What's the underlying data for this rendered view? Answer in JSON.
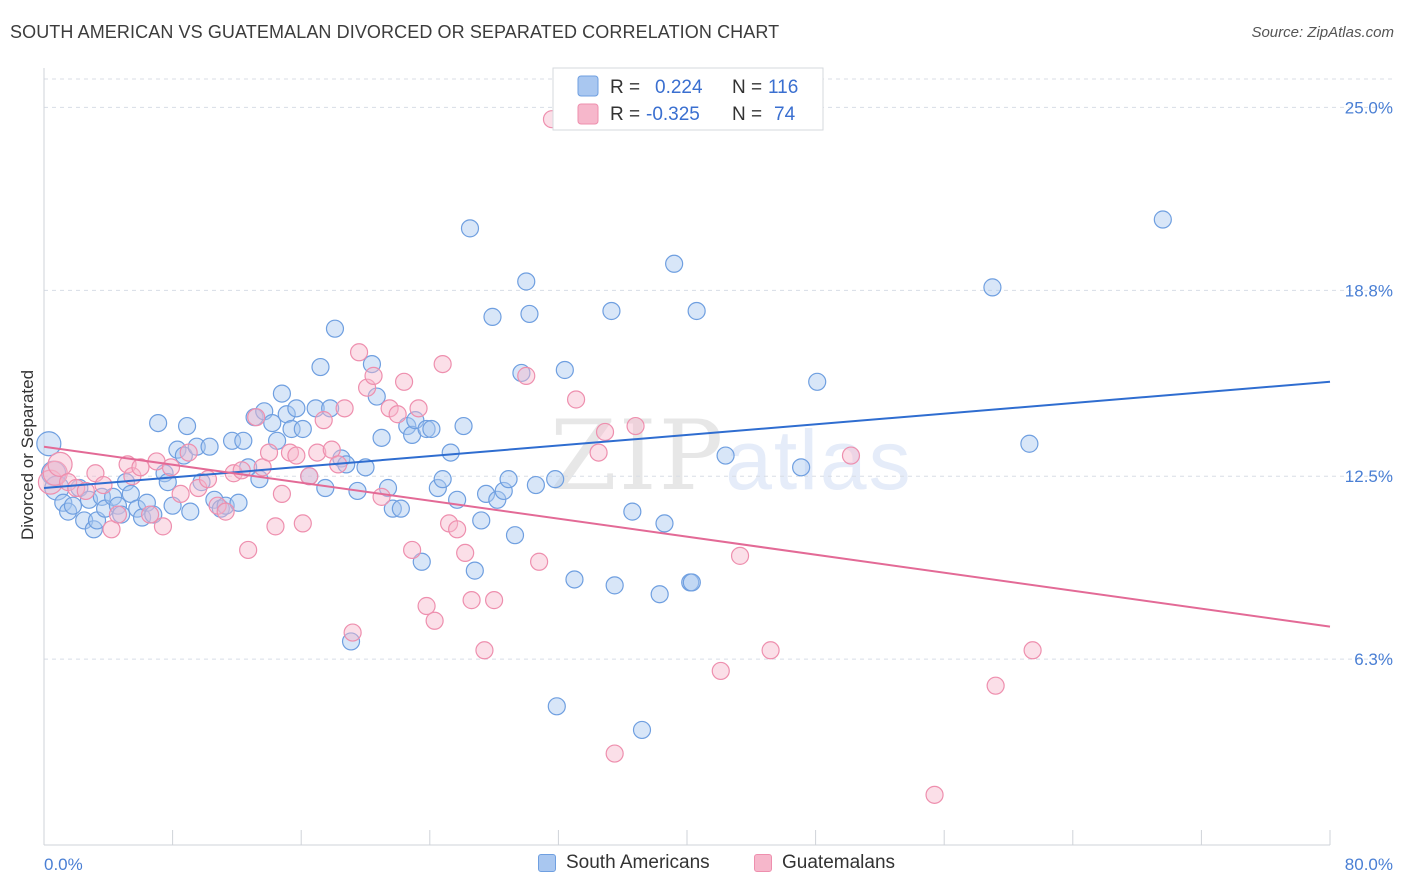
{
  "title": "SOUTH AMERICAN VS GUATEMALAN DIVORCED OR SEPARATED CORRELATION CHART",
  "source": "Source: ZipAtlas.com",
  "watermark": {
    "zip": "ZIP",
    "atlas": "atlas"
  },
  "legend": {
    "series1": {
      "r_label": "R =",
      "r_value": "0.224",
      "n_label": "N =",
      "n_value": "116"
    },
    "series2": {
      "r_label": "R =",
      "r_value": "-0.325",
      "n_label": "N =",
      "n_value": "74"
    }
  },
  "bottom_legend": {
    "series1": "South Americans",
    "series2": "Guatemalans"
  },
  "colors": {
    "blue_fill": "#a9c7f0",
    "blue_stroke": "#6f9fe0",
    "blue_line": "#2f6dd0",
    "pink_fill": "#f6b7cb",
    "pink_stroke": "#ee8fae",
    "pink_line": "#e36a96",
    "grid": "#d8dde6",
    "tick_text": "#4a7fd4"
  },
  "chart_data": {
    "type": "scatter",
    "title": "SOUTH AMERICAN VS GUATEMALAN DIVORCED OR SEPARATED CORRELATION CHART",
    "xlabel": "",
    "ylabel": "Divorced or Separated",
    "xlim": [
      0,
      80
    ],
    "ylim": [
      0,
      26.2
    ],
    "x_tick_labels": [
      "0.0%",
      "80.0%"
    ],
    "y_ticks": [
      6.3,
      12.5,
      18.8,
      25.0
    ],
    "y_tick_labels": [
      "6.3%",
      "12.5%",
      "18.8%",
      "25.0%"
    ],
    "grid": true,
    "legend_position": "top-center",
    "series": [
      {
        "name": "South Americans",
        "r": 0.224,
        "n": 116,
        "trend": {
          "x": [
            0,
            80
          ],
          "y": [
            12.1,
            15.7
          ]
        },
        "points": [
          [
            0.3,
            13.6
          ],
          [
            0.6,
            12.6
          ],
          [
            0.8,
            12.1
          ],
          [
            1.2,
            11.6
          ],
          [
            1.5,
            11.3
          ],
          [
            1.8,
            11.5
          ],
          [
            2.2,
            12.1
          ],
          [
            2.5,
            11.0
          ],
          [
            2.8,
            11.7
          ],
          [
            3.1,
            10.7
          ],
          [
            3.3,
            11.0
          ],
          [
            3.6,
            11.8
          ],
          [
            3.8,
            11.4
          ],
          [
            4.3,
            11.8
          ],
          [
            4.6,
            11.5
          ],
          [
            4.8,
            11.2
          ],
          [
            5.1,
            12.3
          ],
          [
            5.4,
            11.9
          ],
          [
            5.8,
            11.4
          ],
          [
            6.1,
            11.1
          ],
          [
            6.4,
            11.6
          ],
          [
            6.8,
            11.2
          ],
          [
            7.1,
            14.3
          ],
          [
            7.5,
            12.6
          ],
          [
            7.7,
            12.3
          ],
          [
            8.0,
            11.5
          ],
          [
            8.3,
            13.4
          ],
          [
            8.7,
            13.2
          ],
          [
            8.9,
            14.2
          ],
          [
            9.1,
            11.3
          ],
          [
            9.5,
            13.5
          ],
          [
            9.8,
            12.3
          ],
          [
            10.3,
            13.5
          ],
          [
            10.6,
            11.7
          ],
          [
            11.0,
            11.4
          ],
          [
            11.3,
            11.5
          ],
          [
            11.7,
            13.7
          ],
          [
            12.1,
            11.6
          ],
          [
            12.4,
            13.7
          ],
          [
            12.7,
            12.8
          ],
          [
            13.1,
            14.5
          ],
          [
            13.4,
            12.4
          ],
          [
            13.7,
            14.7
          ],
          [
            14.2,
            14.3
          ],
          [
            14.5,
            13.7
          ],
          [
            14.8,
            15.3
          ],
          [
            15.1,
            14.6
          ],
          [
            15.4,
            14.1
          ],
          [
            15.7,
            14.8
          ],
          [
            16.1,
            14.1
          ],
          [
            16.5,
            12.5
          ],
          [
            16.9,
            14.8
          ],
          [
            17.2,
            16.2
          ],
          [
            17.5,
            12.1
          ],
          [
            17.8,
            14.8
          ],
          [
            18.1,
            17.5
          ],
          [
            18.5,
            13.1
          ],
          [
            18.8,
            12.9
          ],
          [
            19.1,
            6.9
          ],
          [
            19.5,
            12.0
          ],
          [
            20.0,
            12.8
          ],
          [
            20.4,
            16.3
          ],
          [
            20.7,
            15.2
          ],
          [
            21.0,
            13.8
          ],
          [
            21.4,
            12.1
          ],
          [
            21.7,
            11.4
          ],
          [
            22.2,
            11.4
          ],
          [
            22.6,
            14.2
          ],
          [
            22.9,
            13.9
          ],
          [
            23.1,
            14.4
          ],
          [
            23.5,
            9.6
          ],
          [
            23.8,
            14.1
          ],
          [
            24.1,
            14.1
          ],
          [
            24.5,
            12.1
          ],
          [
            24.8,
            12.4
          ],
          [
            25.3,
            13.3
          ],
          [
            25.7,
            11.7
          ],
          [
            26.1,
            14.2
          ],
          [
            26.5,
            20.9
          ],
          [
            26.8,
            9.3
          ],
          [
            27.2,
            11.0
          ],
          [
            27.5,
            11.9
          ],
          [
            27.9,
            17.9
          ],
          [
            28.2,
            11.7
          ],
          [
            28.6,
            12.0
          ],
          [
            28.9,
            12.4
          ],
          [
            29.3,
            10.5
          ],
          [
            29.7,
            16.0
          ],
          [
            30.0,
            19.1
          ],
          [
            30.2,
            18.0
          ],
          [
            30.6,
            12.2
          ],
          [
            31.8,
            12.4
          ],
          [
            31.9,
            4.7
          ],
          [
            32.4,
            16.1
          ],
          [
            33.0,
            9.0
          ],
          [
            35.3,
            18.1
          ],
          [
            35.5,
            8.8
          ],
          [
            36.6,
            11.3
          ],
          [
            37.2,
            3.9
          ],
          [
            38.3,
            8.5
          ],
          [
            38.6,
            10.9
          ],
          [
            39.2,
            19.7
          ],
          [
            40.2,
            8.9
          ],
          [
            40.3,
            8.9
          ],
          [
            40.6,
            18.1
          ],
          [
            42.4,
            13.2
          ],
          [
            47.1,
            12.8
          ],
          [
            48.1,
            15.7
          ],
          [
            59.0,
            18.9
          ],
          [
            61.3,
            13.6
          ],
          [
            69.6,
            21.2
          ]
        ]
      },
      {
        "name": "Guatemalans",
        "r": -0.325,
        "n": 74,
        "trend": {
          "x": [
            0,
            80
          ],
          "y": [
            13.5,
            7.4
          ]
        },
        "points": [
          [
            0.4,
            12.3
          ],
          [
            0.7,
            12.6
          ],
          [
            1.0,
            12.9
          ],
          [
            1.5,
            12.3
          ],
          [
            2.0,
            12.1
          ],
          [
            2.6,
            12.0
          ],
          [
            3.2,
            12.6
          ],
          [
            3.7,
            12.2
          ],
          [
            4.2,
            10.7
          ],
          [
            4.6,
            11.2
          ],
          [
            5.2,
            12.9
          ],
          [
            5.5,
            12.5
          ],
          [
            6.0,
            12.8
          ],
          [
            6.6,
            11.2
          ],
          [
            7.0,
            13.0
          ],
          [
            7.4,
            10.8
          ],
          [
            7.9,
            12.8
          ],
          [
            8.5,
            11.9
          ],
          [
            9.0,
            13.3
          ],
          [
            9.6,
            12.1
          ],
          [
            10.2,
            12.4
          ],
          [
            10.8,
            11.5
          ],
          [
            11.3,
            11.3
          ],
          [
            11.8,
            12.6
          ],
          [
            12.3,
            12.7
          ],
          [
            12.7,
            10.0
          ],
          [
            13.2,
            14.5
          ],
          [
            13.6,
            12.8
          ],
          [
            14.0,
            13.3
          ],
          [
            14.4,
            10.8
          ],
          [
            14.8,
            11.9
          ],
          [
            15.3,
            13.3
          ],
          [
            15.7,
            13.2
          ],
          [
            16.1,
            10.9
          ],
          [
            16.5,
            12.5
          ],
          [
            17.0,
            13.3
          ],
          [
            17.4,
            14.4
          ],
          [
            17.9,
            13.4
          ],
          [
            18.3,
            12.9
          ],
          [
            18.7,
            14.8
          ],
          [
            19.2,
            7.2
          ],
          [
            19.6,
            16.7
          ],
          [
            20.1,
            15.5
          ],
          [
            20.5,
            15.9
          ],
          [
            21.0,
            11.8
          ],
          [
            21.5,
            14.8
          ],
          [
            22.0,
            14.6
          ],
          [
            22.4,
            15.7
          ],
          [
            22.9,
            10.0
          ],
          [
            23.3,
            14.8
          ],
          [
            23.8,
            8.1
          ],
          [
            24.3,
            7.6
          ],
          [
            24.8,
            16.3
          ],
          [
            25.2,
            10.9
          ],
          [
            25.7,
            10.7
          ],
          [
            26.2,
            9.9
          ],
          [
            26.6,
            8.3
          ],
          [
            27.4,
            6.6
          ],
          [
            28.0,
            8.3
          ],
          [
            30.0,
            15.9
          ],
          [
            30.8,
            9.6
          ],
          [
            31.6,
            24.6
          ],
          [
            33.1,
            15.1
          ],
          [
            34.5,
            13.3
          ],
          [
            34.9,
            14.0
          ],
          [
            35.5,
            3.1
          ],
          [
            36.8,
            14.2
          ],
          [
            42.1,
            5.9
          ],
          [
            43.3,
            9.8
          ],
          [
            45.2,
            6.6
          ],
          [
            50.2,
            13.2
          ],
          [
            59.2,
            5.4
          ],
          [
            61.5,
            6.6
          ],
          [
            55.4,
            1.7
          ]
        ]
      }
    ]
  }
}
